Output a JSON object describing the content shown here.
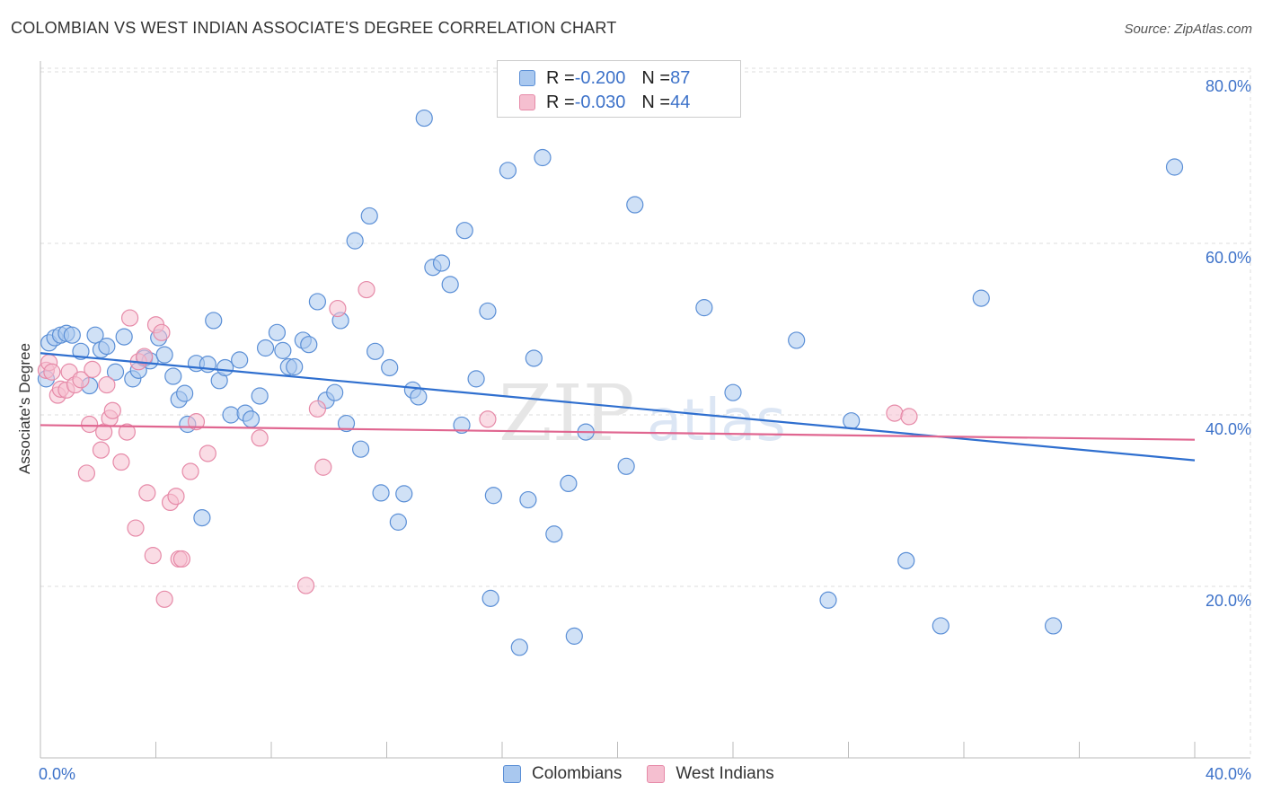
{
  "title": "COLOMBIAN VS WEST INDIAN ASSOCIATE'S DEGREE CORRELATION CHART",
  "source": "Source: ZipAtlas.com",
  "colors": {
    "blue_fill": "#a9c8ef",
    "blue_stroke": "#5b8fd6",
    "blue_line": "#2f6fcf",
    "pink_fill": "#f5bfd0",
    "pink_stroke": "#e68aa8",
    "pink_line": "#e06690",
    "tick_text": "#3d72c9",
    "grid": "#dddddd"
  },
  "legend": {
    "rows": [
      {
        "r_label": "R = ",
        "r_value": "-0.200",
        "n_label": "N = ",
        "n_value": "87"
      },
      {
        "r_label": "R = ",
        "r_value": "-0.030",
        "n_label": "N = ",
        "n_value": "44"
      }
    ]
  },
  "bottom_legend": [
    "Colombians",
    "West Indians"
  ],
  "chart_data": {
    "type": "scatter",
    "title": "COLOMBIAN VS WEST INDIAN ASSOCIATE'S DEGREE CORRELATION CHART",
    "xlabel": "",
    "ylabel": "Associate's Degree",
    "xlim": [
      0,
      40
    ],
    "ylim": [
      0,
      80
    ],
    "x_tick_labels": [
      "0.0%",
      "40.0%"
    ],
    "y_tick_labels": [
      "20.0%",
      "40.0%",
      "60.0%",
      "80.0%"
    ],
    "y_ticks": [
      20,
      40,
      60,
      80
    ],
    "watermark": "ZIPatlas",
    "series": [
      {
        "name": "Colombians",
        "r": -0.2,
        "n": 87,
        "trend": {
          "x": [
            0,
            40
          ],
          "y": [
            47.2,
            34.7
          ]
        },
        "points": [
          [
            0.2,
            44.2
          ],
          [
            0.3,
            48.4
          ],
          [
            0.5,
            49.0
          ],
          [
            0.7,
            49.3
          ],
          [
            0.9,
            49.5
          ],
          [
            1.1,
            49.3
          ],
          [
            1.4,
            47.4
          ],
          [
            1.7,
            43.4
          ],
          [
            1.9,
            49.3
          ],
          [
            2.1,
            47.6
          ],
          [
            2.3,
            48.0
          ],
          [
            2.6,
            45.0
          ],
          [
            2.9,
            49.1
          ],
          [
            3.2,
            44.2
          ],
          [
            3.4,
            45.2
          ],
          [
            3.6,
            46.6
          ],
          [
            3.8,
            46.3
          ],
          [
            4.1,
            49.0
          ],
          [
            4.3,
            47.0
          ],
          [
            4.6,
            44.5
          ],
          [
            4.8,
            41.8
          ],
          [
            5.0,
            42.5
          ],
          [
            5.1,
            38.9
          ],
          [
            5.4,
            46.0
          ],
          [
            5.6,
            28.0
          ],
          [
            5.8,
            45.9
          ],
          [
            6.0,
            51.0
          ],
          [
            6.2,
            44.0
          ],
          [
            6.4,
            45.5
          ],
          [
            6.6,
            40.0
          ],
          [
            6.9,
            46.4
          ],
          [
            7.1,
            40.2
          ],
          [
            7.3,
            39.5
          ],
          [
            7.6,
            42.2
          ],
          [
            7.8,
            47.8
          ],
          [
            8.2,
            49.6
          ],
          [
            8.4,
            47.5
          ],
          [
            8.6,
            45.6
          ],
          [
            8.8,
            45.6
          ],
          [
            9.1,
            48.7
          ],
          [
            9.3,
            48.2
          ],
          [
            9.6,
            53.2
          ],
          [
            9.9,
            41.7
          ],
          [
            10.2,
            42.6
          ],
          [
            10.4,
            51.0
          ],
          [
            10.6,
            39.0
          ],
          [
            10.9,
            60.3
          ],
          [
            11.1,
            36.0
          ],
          [
            11.4,
            63.2
          ],
          [
            11.6,
            47.4
          ],
          [
            11.8,
            30.9
          ],
          [
            12.1,
            45.5
          ],
          [
            12.4,
            27.5
          ],
          [
            12.6,
            30.8
          ],
          [
            12.9,
            42.9
          ],
          [
            13.1,
            42.1
          ],
          [
            13.3,
            74.6
          ],
          [
            13.6,
            57.2
          ],
          [
            13.9,
            57.7
          ],
          [
            14.2,
            55.2
          ],
          [
            14.6,
            38.8
          ],
          [
            14.7,
            61.5
          ],
          [
            15.1,
            44.2
          ],
          [
            15.5,
            52.1
          ],
          [
            15.6,
            18.6
          ],
          [
            15.7,
            30.6
          ],
          [
            16.2,
            68.5
          ],
          [
            16.6,
            12.9
          ],
          [
            16.9,
            30.1
          ],
          [
            17.1,
            46.6
          ],
          [
            17.4,
            70.0
          ],
          [
            17.8,
            26.1
          ],
          [
            18.3,
            32.0
          ],
          [
            18.9,
            38.0
          ],
          [
            18.5,
            14.2
          ],
          [
            20.3,
            34.0
          ],
          [
            20.6,
            64.5
          ],
          [
            23.0,
            52.5
          ],
          [
            24.0,
            42.6
          ],
          [
            26.2,
            48.7
          ],
          [
            27.3,
            18.4
          ],
          [
            28.1,
            39.3
          ],
          [
            30.0,
            23.0
          ],
          [
            31.2,
            15.4
          ],
          [
            32.6,
            53.6
          ],
          [
            35.1,
            15.4
          ],
          [
            39.3,
            68.9
          ]
        ]
      },
      {
        "name": "West Indians",
        "r": -0.03,
        "n": 44,
        "trend": {
          "x": [
            0,
            40
          ],
          "y": [
            38.8,
            37.1
          ]
        },
        "points": [
          [
            0.2,
            45.2
          ],
          [
            0.3,
            46.1
          ],
          [
            0.4,
            45.0
          ],
          [
            0.6,
            42.3
          ],
          [
            0.7,
            43.0
          ],
          [
            0.9,
            42.9
          ],
          [
            1.0,
            45.0
          ],
          [
            1.2,
            43.5
          ],
          [
            1.4,
            44.1
          ],
          [
            1.6,
            33.2
          ],
          [
            1.7,
            38.9
          ],
          [
            1.8,
            45.3
          ],
          [
            2.1,
            35.9
          ],
          [
            2.2,
            38.0
          ],
          [
            2.3,
            43.5
          ],
          [
            2.4,
            39.6
          ],
          [
            2.5,
            40.5
          ],
          [
            2.8,
            34.5
          ],
          [
            3.0,
            38.0
          ],
          [
            3.1,
            51.3
          ],
          [
            3.3,
            26.8
          ],
          [
            3.4,
            46.2
          ],
          [
            3.6,
            46.8
          ],
          [
            3.7,
            30.9
          ],
          [
            3.9,
            23.6
          ],
          [
            4.0,
            50.5
          ],
          [
            4.2,
            49.6
          ],
          [
            4.3,
            18.5
          ],
          [
            4.5,
            29.8
          ],
          [
            4.7,
            30.5
          ],
          [
            4.8,
            23.2
          ],
          [
            4.9,
            23.2
          ],
          [
            5.2,
            33.4
          ],
          [
            5.4,
            39.2
          ],
          [
            5.8,
            35.5
          ],
          [
            7.6,
            37.3
          ],
          [
            9.2,
            20.1
          ],
          [
            9.6,
            40.7
          ],
          [
            9.8,
            33.9
          ],
          [
            10.3,
            52.4
          ],
          [
            11.3,
            54.6
          ],
          [
            15.5,
            39.5
          ],
          [
            29.6,
            40.2
          ],
          [
            30.1,
            39.8
          ]
        ]
      }
    ]
  }
}
